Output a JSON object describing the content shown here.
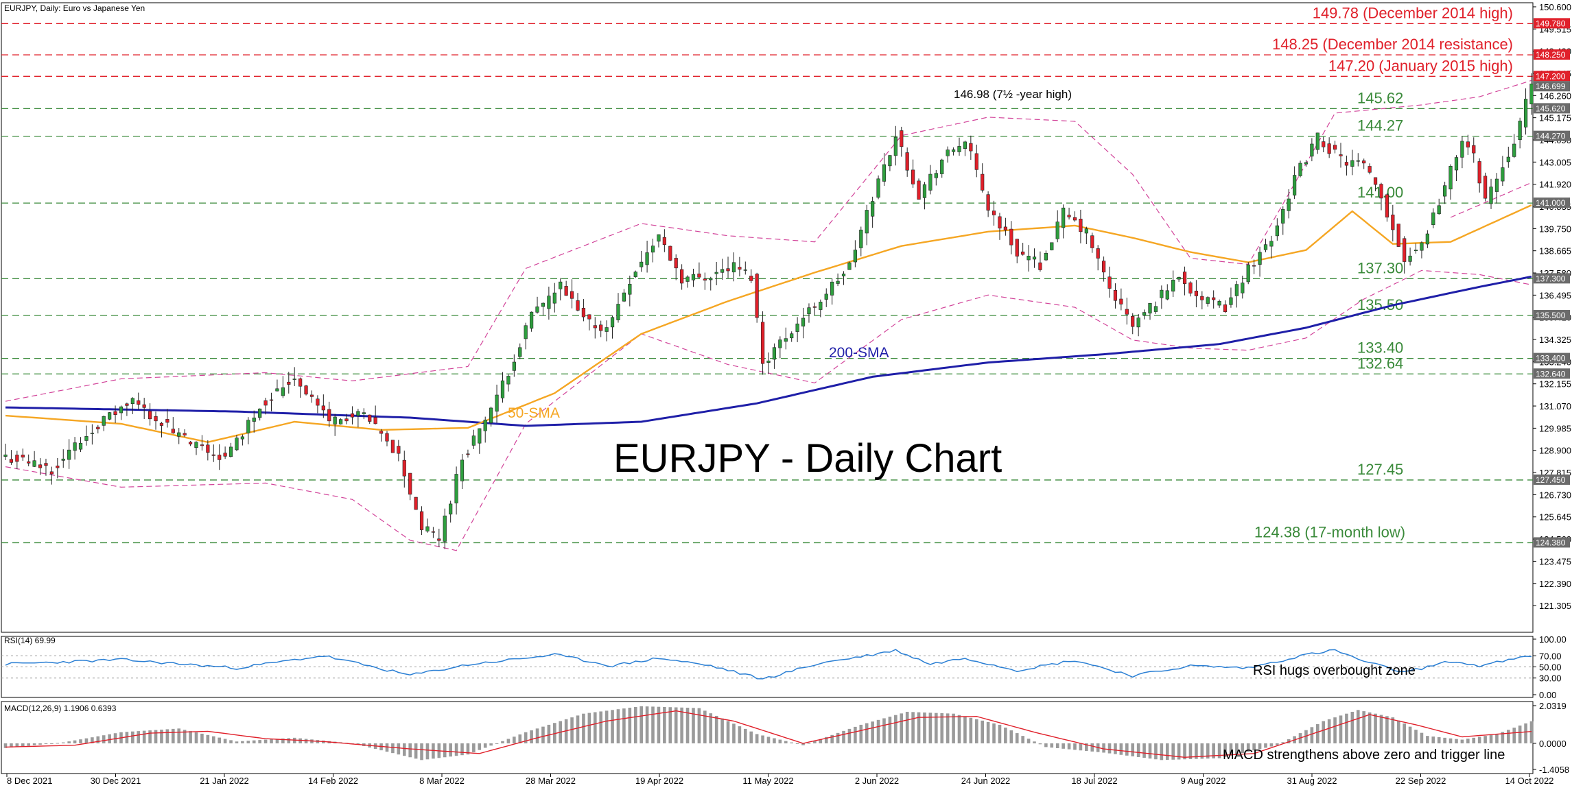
{
  "header": {
    "symbol_info": "EURJPY, Daily:  Euro vs Japanese Yen",
    "main_title": "EURJPY - Daily Chart"
  },
  "colors": {
    "bull": "#2e9e3e",
    "bear": "#e0202a",
    "sma50": "#f5a623",
    "sma200": "#1f1fa8",
    "bollinger": "#d2449a",
    "resistance": "#e0202a",
    "support": "#3a8a3a",
    "rsi": "#2a7fd4",
    "macd_hist": "#9a9a9a",
    "macd_signal": "#e0202a"
  },
  "chart_data": [
    {
      "type": "candlestick",
      "title": "EURJPY - Daily Chart",
      "x_tick_labels": [
        "8 Dec 2021",
        "30 Dec 2021",
        "21 Jan 2022",
        "14 Feb 2022",
        "8 Mar 2022",
        "28 Mar 2022",
        "19 Apr 2022",
        "11 May 2022",
        "2 Jun 2022",
        "24 Jun 2022",
        "18 Jul 2022",
        "9 Aug 2022",
        "31 Aug 2022",
        "22 Sep 2022",
        "14 Oct 2022"
      ],
      "y_range": [
        120.0,
        150.8
      ],
      "y_tick_labels": [
        "150.600",
        "149.515",
        "148.430",
        "147.345",
        "146.260",
        "145.175",
        "144.090",
        "143.005",
        "141.920",
        "140.835",
        "139.750",
        "138.665",
        "137.580",
        "136.495",
        "135.410",
        "134.325",
        "133.240",
        "132.155",
        "131.070",
        "129.985",
        "128.900",
        "127.815",
        "126.730",
        "125.645",
        "124.560",
        "123.475",
        "122.390",
        "121.305"
      ],
      "price_anchors": [
        [
          0,
          128.6
        ],
        [
          8,
          128.0
        ],
        [
          16,
          130.2
        ],
        [
          22,
          131.3
        ],
        [
          32,
          129.2
        ],
        [
          38,
          128.5
        ],
        [
          44,
          131.1
        ],
        [
          50,
          132.5
        ],
        [
          56,
          130.4
        ],
        [
          62,
          130.6
        ],
        [
          68,
          128.6
        ],
        [
          72,
          125.1
        ],
        [
          75,
          124.6
        ],
        [
          79,
          128.5
        ],
        [
          85,
          131.4
        ],
        [
          91,
          135.5
        ],
        [
          96,
          136.9
        ],
        [
          100,
          135.3
        ],
        [
          104,
          134.8
        ],
        [
          108,
          137.3
        ],
        [
          113,
          139.4
        ],
        [
          117,
          137.3
        ],
        [
          121,
          137.4
        ],
        [
          126,
          137.9
        ],
        [
          129,
          137.4
        ],
        [
          131,
          133.2
        ],
        [
          135,
          134.5
        ],
        [
          141,
          136.3
        ],
        [
          146,
          137.9
        ],
        [
          150,
          141.3
        ],
        [
          154,
          144.3
        ],
        [
          158,
          141.4
        ],
        [
          162,
          143.1
        ],
        [
          166,
          144.1
        ],
        [
          170,
          140.8
        ],
        [
          175,
          138.6
        ],
        [
          179,
          138.0
        ],
        [
          183,
          140.5
        ],
        [
          187,
          139.5
        ],
        [
          191,
          136.8
        ],
        [
          195,
          135.0
        ],
        [
          199,
          136.2
        ],
        [
          203,
          137.5
        ],
        [
          207,
          136.2
        ],
        [
          211,
          135.9
        ],
        [
          215,
          137.8
        ],
        [
          219,
          139.3
        ],
        [
          223,
          142.2
        ],
        [
          227,
          144.2
        ],
        [
          231,
          143.1
        ],
        [
          235,
          142.8
        ],
        [
          238,
          141.2
        ],
        [
          242,
          138.3
        ],
        [
          245,
          139.0
        ],
        [
          249,
          141.8
        ],
        [
          252,
          144.1
        ],
        [
          254,
          143.2
        ],
        [
          256,
          141.2
        ],
        [
          258,
          142.2
        ],
        [
          261,
          144.1
        ],
        [
          264,
          146.7
        ]
      ],
      "sma50_anchors": [
        [
          0,
          130.6
        ],
        [
          20,
          130.2
        ],
        [
          35,
          129.3
        ],
        [
          50,
          130.3
        ],
        [
          65,
          129.9
        ],
        [
          80,
          130.0
        ],
        [
          95,
          131.7
        ],
        [
          110,
          134.6
        ],
        [
          125,
          136.2
        ],
        [
          140,
          137.6
        ],
        [
          155,
          138.9
        ],
        [
          170,
          139.6
        ],
        [
          185,
          139.9
        ],
        [
          195,
          139.3
        ],
        [
          205,
          138.6
        ],
        [
          215,
          138.1
        ],
        [
          225,
          138.7
        ],
        [
          233,
          140.6
        ],
        [
          240,
          139.0
        ],
        [
          250,
          139.1
        ],
        [
          264,
          140.9
        ]
      ],
      "sma200_anchors": [
        [
          0,
          131.0
        ],
        [
          40,
          130.8
        ],
        [
          70,
          130.5
        ],
        [
          90,
          130.1
        ],
        [
          110,
          130.3
        ],
        [
          130,
          131.2
        ],
        [
          150,
          132.5
        ],
        [
          170,
          133.2
        ],
        [
          190,
          133.6
        ],
        [
          210,
          134.1
        ],
        [
          225,
          134.9
        ],
        [
          240,
          136.0
        ],
        [
          255,
          136.9
        ],
        [
          264,
          137.4
        ]
      ],
      "bollinger_upper_anchors": [
        [
          0,
          131.3
        ],
        [
          20,
          132.4
        ],
        [
          45,
          132.7
        ],
        [
          60,
          132.3
        ],
        [
          80,
          133.0
        ],
        [
          90,
          137.8
        ],
        [
          110,
          140.0
        ],
        [
          125,
          139.4
        ],
        [
          140,
          139.1
        ],
        [
          155,
          144.3
        ],
        [
          170,
          145.2
        ],
        [
          185,
          145.0
        ],
        [
          195,
          142.4
        ],
        [
          205,
          138.3
        ],
        [
          215,
          138.0
        ],
        [
          230,
          145.4
        ],
        [
          245,
          145.8
        ],
        [
          255,
          146.2
        ],
        [
          264,
          147.0
        ]
      ],
      "bollinger_lower_anchors": [
        [
          0,
          128.1
        ],
        [
          20,
          127.1
        ],
        [
          45,
          127.3
        ],
        [
          60,
          126.5
        ],
        [
          70,
          124.5
        ],
        [
          78,
          124.0
        ],
        [
          90,
          130.2
        ],
        [
          110,
          134.6
        ],
        [
          125,
          133.1
        ],
        [
          140,
          132.2
        ],
        [
          155,
          135.3
        ],
        [
          170,
          136.5
        ],
        [
          185,
          135.9
        ],
        [
          195,
          134.3
        ],
        [
          205,
          133.9
        ],
        [
          215,
          133.8
        ],
        [
          225,
          134.4
        ],
        [
          235,
          136.3
        ],
        [
          245,
          137.7
        ],
        [
          255,
          137.5
        ],
        [
          264,
          137.0
        ]
      ],
      "bollinger_mid_anchors": [
        [
          250,
          140.3
        ],
        [
          264,
          142.0
        ]
      ],
      "horizontal_levels": [
        {
          "value": 149.78,
          "style": "resistance",
          "label": "149.78 (December 2014 high)",
          "tag": "149.780"
        },
        {
          "value": 148.25,
          "style": "resistance",
          "label": "148.25 (December 2014 resistance)",
          "tag": "148.250"
        },
        {
          "value": 147.2,
          "style": "resistance",
          "label": "147.20 (January 2015 high)",
          "tag": "147.200"
        },
        {
          "value": 145.62,
          "style": "support",
          "label": "145.62",
          "tag": "145.620"
        },
        {
          "value": 144.27,
          "style": "support",
          "label": "144.27",
          "tag": "144.270"
        },
        {
          "value": 141.0,
          "style": "support",
          "label": "141.00",
          "tag": "141.000"
        },
        {
          "value": 137.3,
          "style": "support",
          "label": "137.30",
          "tag": "137.300"
        },
        {
          "value": 135.5,
          "style": "support",
          "label": "135.50",
          "tag": "135.500"
        },
        {
          "value": 133.4,
          "style": "support",
          "label": "133.40",
          "tag": "133.400"
        },
        {
          "value": 132.64,
          "style": "support",
          "label": "132.64",
          "tag": "132.640"
        },
        {
          "value": 127.45,
          "style": "support",
          "label": "127.45",
          "tag": "127.450"
        },
        {
          "value": 124.38,
          "style": "support",
          "label": "124.38 (17-month low)",
          "tag": "124.380"
        }
      ],
      "current_price_tag": "146.699",
      "annotations": [
        "146.98 (7½ -year high)",
        "50-SMA",
        "200-SMA"
      ]
    },
    {
      "type": "line",
      "title": "RSI(14) 69.99",
      "y_range": [
        0,
        100
      ],
      "y_tick_labels": [
        "100.00",
        "70.00",
        "50.00",
        "30.00",
        "0.00"
      ],
      "note": "RSI hugs overbought zone",
      "values_anchors": [
        [
          0,
          55
        ],
        [
          20,
          63
        ],
        [
          40,
          48
        ],
        [
          55,
          70
        ],
        [
          70,
          35
        ],
        [
          80,
          54
        ],
        [
          95,
          72
        ],
        [
          105,
          52
        ],
        [
          113,
          66
        ],
        [
          122,
          52
        ],
        [
          131,
          28
        ],
        [
          141,
          57
        ],
        [
          150,
          72
        ],
        [
          154,
          80
        ],
        [
          160,
          55
        ],
        [
          166,
          66
        ],
        [
          175,
          44
        ],
        [
          185,
          62
        ],
        [
          195,
          34
        ],
        [
          205,
          52
        ],
        [
          215,
          48
        ],
        [
          225,
          72
        ],
        [
          230,
          80
        ],
        [
          235,
          60
        ],
        [
          242,
          40
        ],
        [
          250,
          60
        ],
        [
          255,
          52
        ],
        [
          258,
          58
        ],
        [
          264,
          70
        ]
      ]
    },
    {
      "type": "bar",
      "title": "MACD(12,26,9) 1.1906 0.6393",
      "y_range": [
        -1.4058,
        2.0319
      ],
      "y_tick_labels": [
        "2.0319",
        "0.0000",
        "-1.4058"
      ],
      "note": "MACD strengthens above zero and trigger line",
      "hist_anchors": [
        [
          0,
          -0.25
        ],
        [
          10,
          0.05
        ],
        [
          20,
          0.6
        ],
        [
          30,
          0.8
        ],
        [
          40,
          0.1
        ],
        [
          50,
          0.3
        ],
        [
          60,
          0.0
        ],
        [
          72,
          -0.9
        ],
        [
          80,
          -0.6
        ],
        [
          90,
          0.6
        ],
        [
          100,
          1.6
        ],
        [
          110,
          2.0
        ],
        [
          120,
          1.9
        ],
        [
          130,
          0.5
        ],
        [
          138,
          -0.1
        ],
        [
          148,
          1.0
        ],
        [
          156,
          1.7
        ],
        [
          164,
          1.6
        ],
        [
          172,
          1.0
        ],
        [
          180,
          -0.2
        ],
        [
          190,
          -0.5
        ],
        [
          200,
          -0.9
        ],
        [
          210,
          -0.8
        ],
        [
          220,
          -0.1
        ],
        [
          228,
          1.2
        ],
        [
          234,
          1.8
        ],
        [
          240,
          1.4
        ],
        [
          246,
          0.4
        ],
        [
          252,
          0.2
        ],
        [
          258,
          0.5
        ],
        [
          264,
          1.19
        ]
      ],
      "signal_anchors": [
        [
          0,
          -0.2
        ],
        [
          12,
          -0.1
        ],
        [
          25,
          0.55
        ],
        [
          35,
          0.65
        ],
        [
          45,
          0.25
        ],
        [
          55,
          0.1
        ],
        [
          70,
          -0.3
        ],
        [
          82,
          -0.55
        ],
        [
          92,
          0.3
        ],
        [
          104,
          1.2
        ],
        [
          116,
          1.75
        ],
        [
          126,
          1.2
        ],
        [
          138,
          0.0
        ],
        [
          146,
          0.55
        ],
        [
          158,
          1.4
        ],
        [
          168,
          1.45
        ],
        [
          178,
          0.6
        ],
        [
          190,
          -0.3
        ],
        [
          204,
          -0.75
        ],
        [
          216,
          -0.55
        ],
        [
          226,
          0.5
        ],
        [
          236,
          1.55
        ],
        [
          244,
          1.0
        ],
        [
          252,
          0.35
        ],
        [
          264,
          0.64
        ]
      ]
    }
  ]
}
